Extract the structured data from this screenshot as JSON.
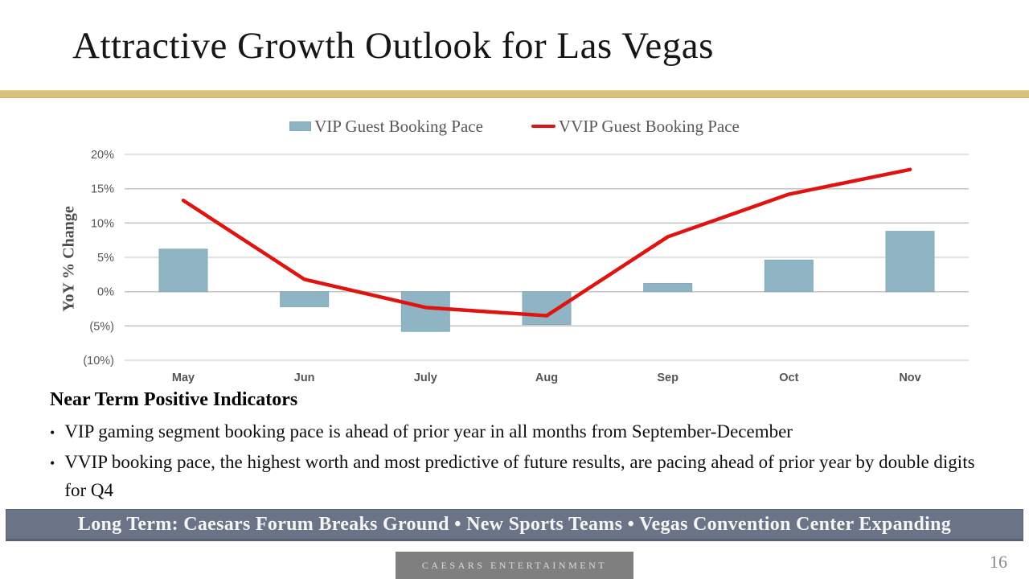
{
  "slide": {
    "title": "Attractive Growth Outlook for Las Vegas",
    "bottom_banner": "Long Term: Caesars Forum Breaks Ground  •  New Sports Teams •  Vegas Convention Center Expanding",
    "footer_brand": "CAESARS ENTERTAINMENT",
    "page_number": "16"
  },
  "indicators": {
    "heading": "Near Term Positive Indicators",
    "bullets": [
      "VIP gaming segment booking pace is ahead of prior year in all months from September-December",
      "VVIP booking pace, the highest worth and most predictive of future results, are pacing ahead of prior year by double digits for Q4"
    ]
  },
  "colors": {
    "accent_gold": "#d8c17b",
    "bar_fill": "#8fb4c3",
    "bar_border": "#84abbb",
    "line_red": "#df1310",
    "grid": "#c4c4c4",
    "axis_text": "#555555",
    "banner_bg": "#6b7386",
    "footer_bg": "#7f7f7f"
  },
  "chart_data": {
    "type": "bar",
    "subtype": "bar+line combo",
    "categories": [
      "May",
      "Jun",
      "July",
      "Aug",
      "Sep",
      "Oct",
      "Nov"
    ],
    "series": [
      {
        "name": "VIP Guest Booking Pace",
        "type": "bar",
        "values": [
          6.2,
          -2.2,
          -5.8,
          -4.8,
          1.2,
          4.6,
          8.8
        ]
      },
      {
        "name": "VVIP Guest Booking Pace",
        "type": "line",
        "values": [
          13.3,
          1.8,
          -2.3,
          -3.5,
          8.0,
          14.2,
          17.8
        ]
      }
    ],
    "title": "",
    "xlabel": "",
    "ylabel": "YoY % Change",
    "ylim": [
      -10,
      20
    ],
    "ytick_values": [
      20,
      15,
      10,
      5,
      0,
      -5,
      -10
    ],
    "ytick_labels": [
      "20%",
      "15%",
      "10%",
      "5%",
      "0%",
      "(5%)",
      "(10%)"
    ],
    "grid": true,
    "legend_position": "top"
  }
}
